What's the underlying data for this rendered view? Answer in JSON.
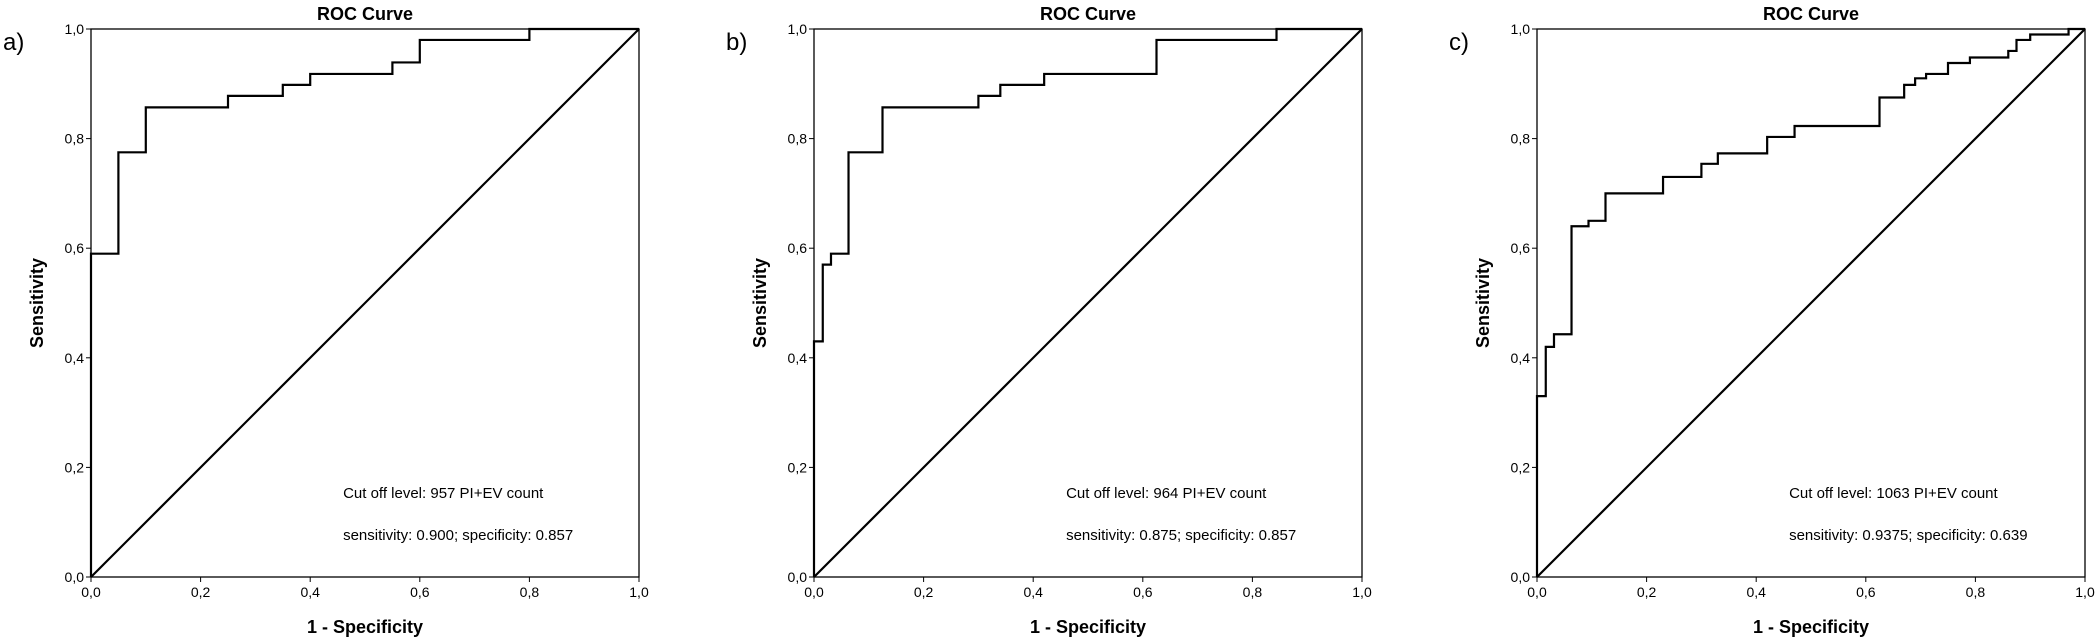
{
  "chart_data": [
    {
      "type": "line",
      "label": "a)",
      "title": "ROC Curve",
      "xlabel": "1 - Specificity",
      "ylabel": "Sensitivity",
      "annotations": [
        "Cut off level:  957 PI+EV count",
        "sensitivity: 0.900; specificity: 0.857"
      ],
      "xlim": [
        0,
        1
      ],
      "ylim": [
        0,
        1
      ],
      "xticks": [
        {
          "value": 0,
          "label": "0,0"
        },
        {
          "value": 0.2,
          "label": "0,2"
        },
        {
          "value": 0.4,
          "label": "0,4"
        },
        {
          "value": 0.6,
          "label": "0,6"
        },
        {
          "value": 0.8,
          "label": "0,8"
        },
        {
          "value": 1,
          "label": "1,0"
        }
      ],
      "yticks": [
        {
          "value": 0,
          "label": "0,0"
        },
        {
          "value": 0.2,
          "label": "0,2"
        },
        {
          "value": 0.4,
          "label": "0,4"
        },
        {
          "value": 0.6,
          "label": "0,6"
        },
        {
          "value": 0.8,
          "label": "0,8"
        },
        {
          "value": 1,
          "label": "1,0"
        }
      ],
      "series": [
        {
          "color": "#000000",
          "x": [
            0,
            0,
            0.05,
            0.05,
            0.1,
            0.1,
            0.25,
            0.25,
            0.35,
            0.35,
            0.4,
            0.4,
            0.55,
            0.55,
            0.6,
            0.6,
            0.8,
            0.8,
            1
          ],
          "values": [
            0,
            0.59,
            0.59,
            0.775,
            0.775,
            0.857,
            0.857,
            0.878,
            0.878,
            0.898,
            0.898,
            0.918,
            0.918,
            0.939,
            0.939,
            0.98,
            0.98,
            1,
            1
          ]
        },
        {
          "color": "#000000",
          "x": [
            0,
            1
          ],
          "values": [
            0,
            1
          ]
        }
      ]
    },
    {
      "type": "line",
      "label": "b)",
      "title": "ROC Curve",
      "xlabel": "1 - Specificity",
      "ylabel": "Sensitivity",
      "annotations": [
        "Cut off level:  964 PI+EV count",
        "sensitivity: 0.875; specificity: 0.857"
      ],
      "xlim": [
        0,
        1
      ],
      "ylim": [
        0,
        1
      ],
      "xticks": [
        {
          "value": 0,
          "label": "0,0"
        },
        {
          "value": 0.2,
          "label": "0,2"
        },
        {
          "value": 0.4,
          "label": "0,4"
        },
        {
          "value": 0.6,
          "label": "0,6"
        },
        {
          "value": 0.8,
          "label": "0,8"
        },
        {
          "value": 1,
          "label": "1,0"
        }
      ],
      "yticks": [
        {
          "value": 0,
          "label": "0,0"
        },
        {
          "value": 0.2,
          "label": "0,2"
        },
        {
          "value": 0.4,
          "label": "0,4"
        },
        {
          "value": 0.6,
          "label": "0,6"
        },
        {
          "value": 0.8,
          "label": "0,8"
        },
        {
          "value": 1,
          "label": "1,0"
        }
      ],
      "series": [
        {
          "color": "#000000",
          "x": [
            0,
            0,
            0.016,
            0.016,
            0.031,
            0.031,
            0.063,
            0.063,
            0.125,
            0.125,
            0.3,
            0.3,
            0.34,
            0.34,
            0.42,
            0.42,
            0.625,
            0.625,
            0.844,
            0.844,
            1
          ],
          "values": [
            0,
            0.43,
            0.43,
            0.57,
            0.57,
            0.59,
            0.59,
            0.775,
            0.775,
            0.857,
            0.857,
            0.878,
            0.878,
            0.898,
            0.898,
            0.918,
            0.918,
            0.98,
            0.98,
            1,
            1
          ]
        },
        {
          "color": "#000000",
          "x": [
            0,
            1
          ],
          "values": [
            0,
            1
          ]
        }
      ]
    },
    {
      "type": "line",
      "label": "c)",
      "title": "ROC Curve",
      "xlabel": "1 - Specificity",
      "ylabel": "Sensitivity",
      "annotations": [
        "Cut off level:  1063 PI+EV count",
        "sensitivity: 0.9375; specificity: 0.639"
      ],
      "xlim": [
        0,
        1
      ],
      "ylim": [
        0,
        1
      ],
      "xticks": [
        {
          "value": 0,
          "label": "0,0"
        },
        {
          "value": 0.2,
          "label": "0,2"
        },
        {
          "value": 0.4,
          "label": "0,4"
        },
        {
          "value": 0.6,
          "label": "0,6"
        },
        {
          "value": 0.8,
          "label": "0,8"
        },
        {
          "value": 1,
          "label": "1,0"
        }
      ],
      "yticks": [
        {
          "value": 0,
          "label": "0,0"
        },
        {
          "value": 0.2,
          "label": "0,2"
        },
        {
          "value": 0.4,
          "label": "0,4"
        },
        {
          "value": 0.6,
          "label": "0,6"
        },
        {
          "value": 0.8,
          "label": "0,8"
        },
        {
          "value": 1,
          "label": "1,0"
        }
      ],
      "series": [
        {
          "color": "#000000",
          "x": [
            0,
            0,
            0.016,
            0.016,
            0.031,
            0.031,
            0.063,
            0.063,
            0.094,
            0.094,
            0.125,
            0.125,
            0.23,
            0.23,
            0.3,
            0.3,
            0.33,
            0.33,
            0.42,
            0.42,
            0.47,
            0.47,
            0.625,
            0.625,
            0.67,
            0.67,
            0.69,
            0.69,
            0.71,
            0.71,
            0.75,
            0.75,
            0.79,
            0.79,
            0.86,
            0.86,
            0.875,
            0.875,
            0.9,
            0.9,
            0.97,
            0.97,
            1
          ],
          "values": [
            0,
            0.33,
            0.33,
            0.42,
            0.42,
            0.443,
            0.443,
            0.64,
            0.64,
            0.65,
            0.65,
            0.7,
            0.7,
            0.73,
            0.73,
            0.754,
            0.754,
            0.773,
            0.773,
            0.803,
            0.803,
            0.823,
            0.823,
            0.875,
            0.875,
            0.898,
            0.898,
            0.91,
            0.91,
            0.918,
            0.918,
            0.938,
            0.938,
            0.948,
            0.948,
            0.96,
            0.96,
            0.98,
            0.98,
            0.99,
            0.99,
            1,
            1
          ]
        },
        {
          "color": "#000000",
          "x": [
            0,
            1
          ],
          "values": [
            0,
            1
          ]
        }
      ]
    }
  ]
}
